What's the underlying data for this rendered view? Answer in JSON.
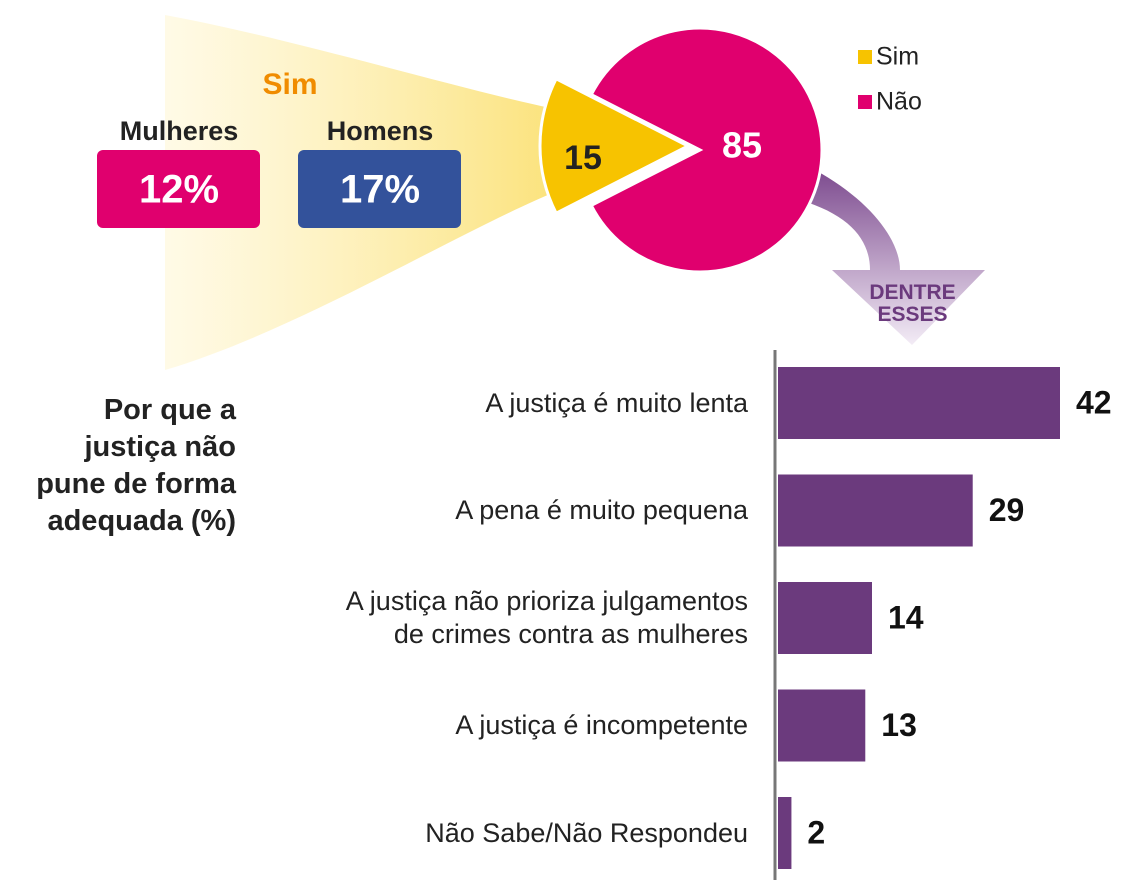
{
  "chart_data": [
    {
      "type": "pie",
      "categories": [
        "Sim",
        "Não"
      ],
      "values": [
        15,
        85
      ],
      "colors": [
        "#f7c300",
        "#e0006e"
      ],
      "breakdown": {
        "title": "Sim",
        "names": [
          "Mulheres",
          "Homens"
        ],
        "values": [
          12,
          17
        ],
        "value_labels": [
          "12%",
          "17%"
        ],
        "colors": [
          "#e0006e",
          "#33529b"
        ]
      },
      "annotation": "DENTRE\nESSES"
    },
    {
      "type": "bar",
      "title": "Por que a\njustiça não\npune de forma\nadequada (%)",
      "categories": [
        "A justiça é muito lenta",
        "A pena é muito pequena",
        "A justiça não prioriza julgamentos\nde crimes contra as mulheres",
        "A justiça é incompetente",
        "Não Sabe/Não Respondeu"
      ],
      "values": [
        42,
        29,
        14,
        13,
        2
      ],
      "color": "#6b3a7d"
    }
  ]
}
